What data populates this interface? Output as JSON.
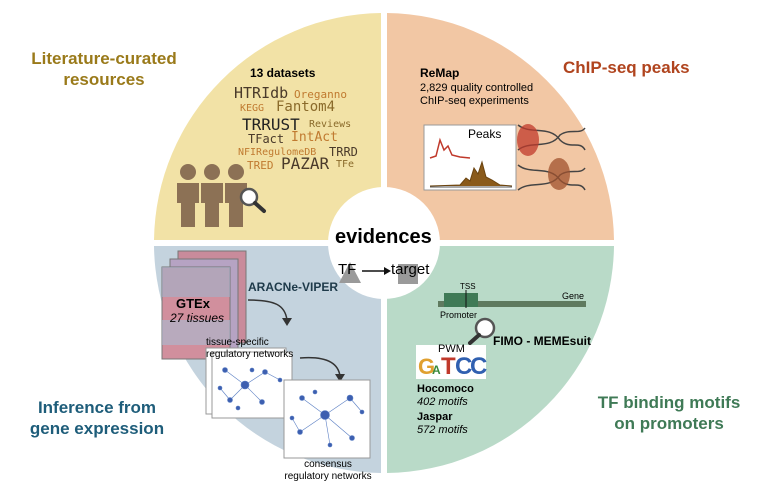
{
  "center": {
    "title": "evidences",
    "tf": "TF",
    "target": "target"
  },
  "literature": {
    "title_line1": "Literature-curated",
    "title_line2": "resources",
    "datasets_label": "13 datasets",
    "cloud": [
      "HTRIdb",
      "Oreganno",
      "KEGG",
      "Fantom4",
      "TRRUST",
      "Reviews",
      "TFact",
      "IntAct",
      "NFIRegulomeDB",
      "TRRD",
      "TRED",
      "PAZAR",
      "TFe"
    ]
  },
  "chipseq": {
    "title": "ChIP-seq peaks",
    "source": "ReMap",
    "desc_line1": "2,829 quality controlled",
    "desc_line2": "ChIP-seq experiments",
    "peaks_label": "Peaks"
  },
  "inference": {
    "title_line1": "Inference from",
    "title_line2": "gene expression",
    "gtex": "GTEx",
    "tissues": "27 tissues",
    "method": "ARACNe-VIPER",
    "tissue_net_line1": "tissue-specific",
    "tissue_net_line2": "regulatory networks",
    "consensus_line1": "consensus",
    "consensus_line2": "regulatory networks"
  },
  "motifs": {
    "title_line1": "TF binding motifs",
    "title_line2": "on promoters",
    "tss": "TSS",
    "gene": "Gene",
    "promoter": "Promoter",
    "tool": "FIMO - MEMEsuit",
    "pwm": "PWM",
    "hocomoco": "Hocomoco",
    "hocomoco_count": "402 motifs",
    "jaspar": "Jaspar",
    "jaspar_count": "572 motifs"
  },
  "colors": {
    "literature": "#f2e2a6",
    "chipseq": "#f2c7a4",
    "inference": "#c4d3de",
    "motifs": "#b9dac8",
    "literature_text": "#9a7a1a",
    "chipseq_text": "#b0441e",
    "inference_text": "#1e5d7a",
    "motifs_text": "#3f7a56",
    "people": "#8c7155"
  }
}
